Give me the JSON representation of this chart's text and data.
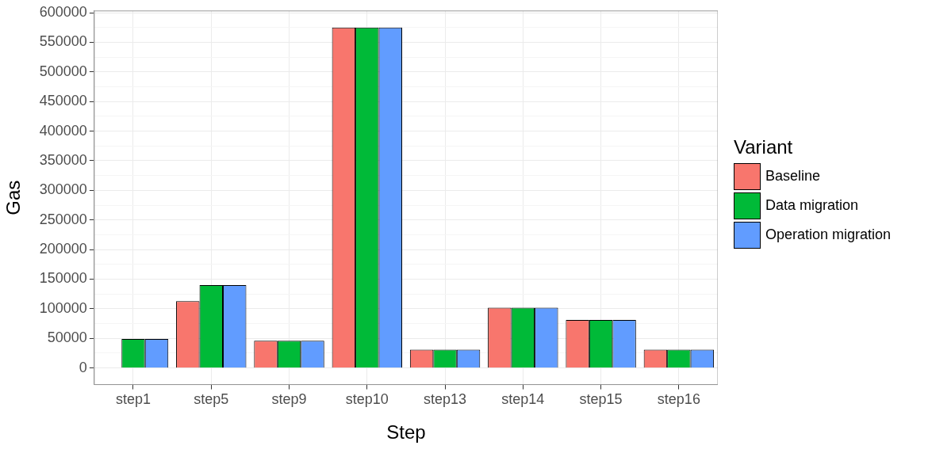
{
  "chart_data": {
    "type": "bar",
    "xlabel": "Step",
    "ylabel": "Gas",
    "legend_title": "Variant",
    "legend": "right",
    "grid": true,
    "categories": [
      "step1",
      "step5",
      "step9",
      "step10",
      "step13",
      "step14",
      "step15",
      "step16"
    ],
    "series": [
      {
        "name": "Baseline",
        "color": "#f8766d",
        "values": [
          0,
          113000,
          46000,
          575000,
          31000,
          102000,
          81000,
          31000
        ]
      },
      {
        "name": "Data migration",
        "color": "#00ba38",
        "values": [
          49000,
          140000,
          46000,
          575000,
          31000,
          102000,
          81000,
          31000
        ]
      },
      {
        "name": "Operation migration",
        "color": "#619cff",
        "values": [
          49000,
          140000,
          46000,
          575000,
          31000,
          102000,
          81000,
          31000
        ]
      }
    ],
    "ylim": [
      -28000,
      603000
    ],
    "yticks": [
      0,
      50000,
      100000,
      150000,
      200000,
      250000,
      300000,
      350000,
      400000,
      450000,
      500000,
      550000,
      600000
    ]
  }
}
